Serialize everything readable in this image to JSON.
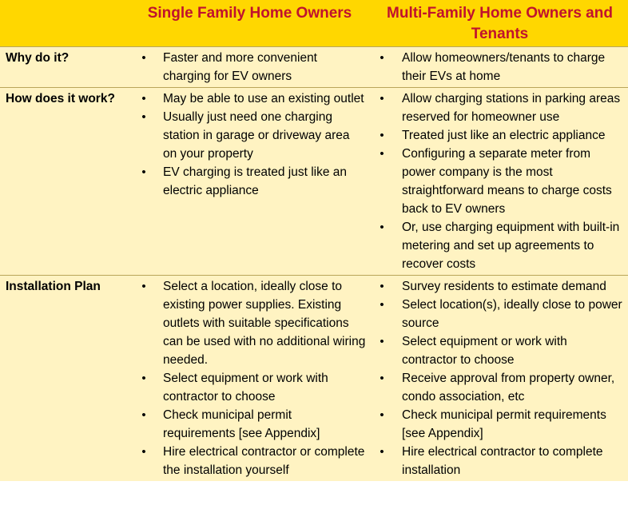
{
  "header": {
    "col1": "",
    "col2": "Single Family Home Owners",
    "col3": "Multi-Family Home Owners and Tenants"
  },
  "rows": [
    {
      "label": "Why do it?",
      "single": [
        "Faster and more convenient charging for EV owners"
      ],
      "multi": [
        "Allow homeowners/tenants to charge their EVs at home"
      ]
    },
    {
      "label": "How does it work?",
      "single": [
        "May be able to use an existing outlet",
        "Usually just need one charging station in garage or driveway area on your property",
        "EV charging is treated just like an electric appliance"
      ],
      "multi": [
        "Allow charging stations in parking areas reserved for homeowner use",
        "Treated just like an electric appliance",
        "Configuring a separate meter from power company is the most straightforward means to charge costs back to EV owners",
        "Or, use charging equipment with built-in metering and set up agreements to recover costs"
      ]
    },
    {
      "label": "Installation Plan",
      "single": [
        "Select a location, ideally close to existing power supplies. Existing outlets with suitable specifications can be used with no additional wiring needed.",
        "Select equipment or work with contractor to choose",
        "Check municipal permit requirements [see Appendix]",
        "Hire electrical contractor or complete the installation yourself"
      ],
      "multi": [
        "Survey residents to estimate demand",
        "Select location(s), ideally close to power source",
        "Select equipment or work with contractor to choose",
        "Receive approval from property owner, condo association, etc",
        "Check municipal permit requirements [see Appendix]",
        "Hire electrical contractor to complete installation"
      ]
    }
  ],
  "bullet_glyph": "•"
}
